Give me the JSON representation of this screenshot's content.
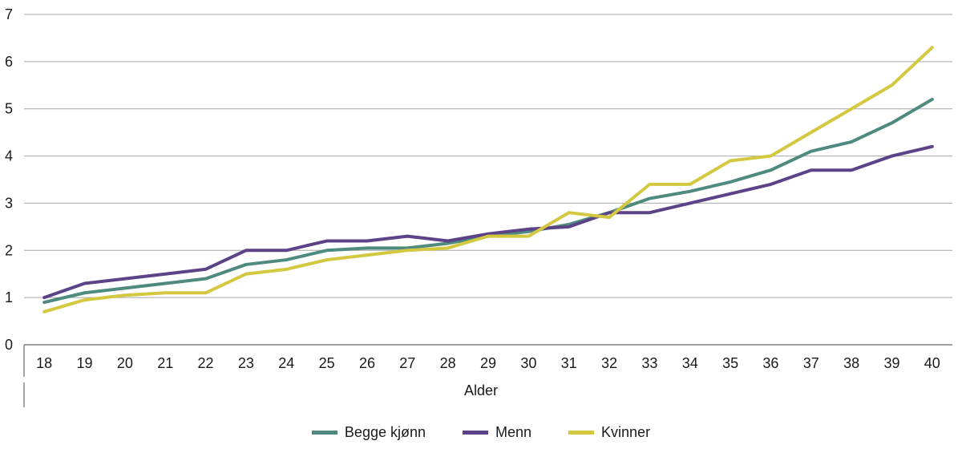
{
  "chart_data": {
    "type": "line",
    "title": "",
    "xlabel": "Alder",
    "ylabel": "",
    "ylim": [
      0,
      7
    ],
    "yticks": [
      0,
      1,
      2,
      3,
      4,
      5,
      6,
      7
    ],
    "grid": "horizontal",
    "legend_position": "bottom",
    "categories": [
      "18",
      "19",
      "20",
      "21",
      "22",
      "23",
      "24",
      "25",
      "26",
      "27",
      "28",
      "29",
      "30",
      "31",
      "32",
      "33",
      "34",
      "35",
      "36",
      "37",
      "38",
      "39",
      "40"
    ],
    "series": [
      {
        "name": "Begge kjønn",
        "color": "#4F8A7E",
        "values": [
          0.9,
          1.1,
          1.2,
          1.3,
          1.4,
          1.7,
          1.8,
          2.0,
          2.05,
          2.05,
          2.15,
          2.3,
          2.4,
          2.55,
          2.8,
          3.1,
          3.25,
          3.45,
          3.7,
          4.1,
          4.3,
          4.7,
          5.2
        ]
      },
      {
        "name": "Menn",
        "color": "#5C4387",
        "values": [
          1.0,
          1.3,
          1.4,
          1.5,
          1.6,
          2.0,
          2.0,
          2.2,
          2.2,
          2.3,
          2.2,
          2.35,
          2.45,
          2.5,
          2.8,
          2.8,
          3.0,
          3.2,
          3.4,
          3.7,
          3.7,
          4.0,
          4.2
        ]
      },
      {
        "name": "Kvinner",
        "color": "#D3C840",
        "values": [
          0.7,
          0.95,
          1.05,
          1.1,
          1.1,
          1.5,
          1.6,
          1.8,
          1.9,
          2.0,
          2.05,
          2.3,
          2.3,
          2.8,
          2.7,
          3.4,
          3.4,
          3.9,
          4.0,
          4.5,
          5.0,
          5.5,
          6.3
        ]
      }
    ]
  },
  "colors": {
    "gridline": "#A6A6A6",
    "axis": "#808080",
    "text": "#1A1A1A",
    "background": "#FFFFFF"
  }
}
